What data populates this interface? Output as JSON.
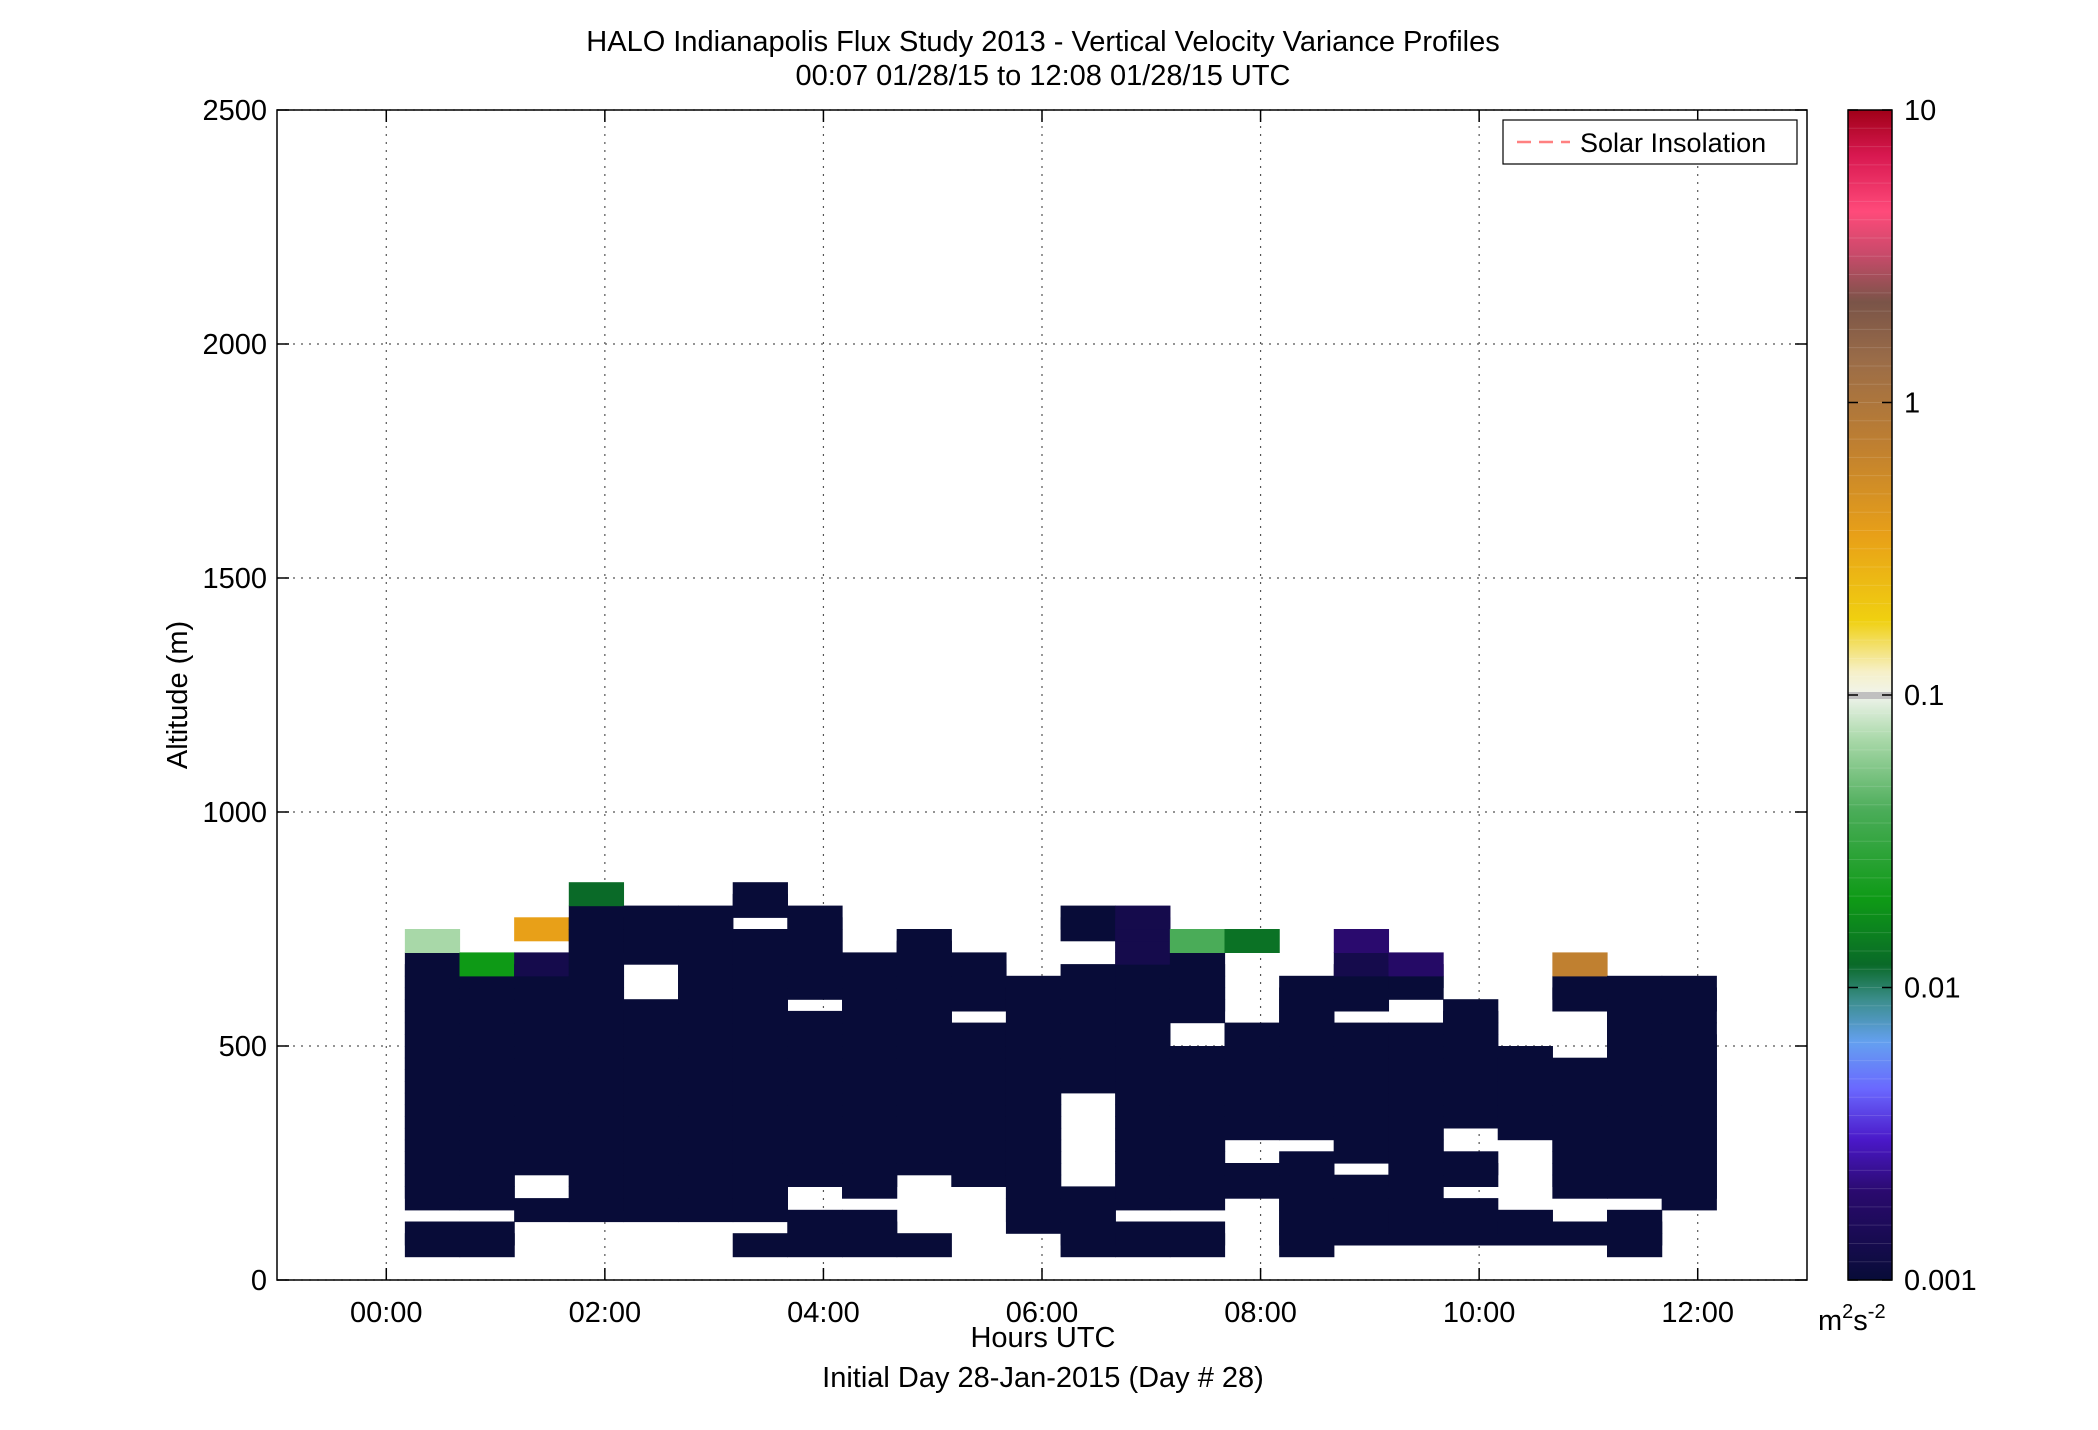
{
  "chart_data": {
    "type": "heatmap",
    "title": "HALO Indianapolis Flux Study 2013 - Vertical Velocity Variance Profiles",
    "subtitle": "00:07 01/28/15 to 12:08 01/28/15  UTC",
    "xlabel": "Hours UTC",
    "xlabel2": "Initial Day 28-Jan-2015 (Day # 28)",
    "ylabel": "Altitude (m)",
    "xlim": [
      -1,
      13
    ],
    "ylim": [
      0,
      2500
    ],
    "grid": true,
    "x_ticks": [
      {
        "value": 0,
        "label": "00:00"
      },
      {
        "value": 2,
        "label": "02:00"
      },
      {
        "value": 4,
        "label": "04:00"
      },
      {
        "value": 6,
        "label": "06:00"
      },
      {
        "value": 8,
        "label": "08:00"
      },
      {
        "value": 10,
        "label": "10:00"
      },
      {
        "value": 12,
        "label": "12:00"
      }
    ],
    "y_ticks": [
      {
        "value": 0,
        "label": "0"
      },
      {
        "value": 500,
        "label": "500"
      },
      {
        "value": 1000,
        "label": "1000"
      },
      {
        "value": 1500,
        "label": "1500"
      },
      {
        "value": 2000,
        "label": "2000"
      },
      {
        "value": 2500,
        "label": "2500"
      }
    ],
    "legend": {
      "position": "top-right",
      "entries": [
        {
          "label": "Solar Insolation",
          "color": "#ff8080",
          "style": "dashed"
        }
      ]
    },
    "colorbar": {
      "scale": "log",
      "range": [
        0.001,
        10
      ],
      "ticks": [
        {
          "value": 0.001,
          "label": "0.001"
        },
        {
          "value": 0.01,
          "label": "0.01"
        },
        {
          "value": 0.1,
          "label": "0.1"
        },
        {
          "value": 1,
          "label": "1"
        },
        {
          "value": 10,
          "label": "10"
        }
      ],
      "units_base": "m",
      "units_sup1": "2",
      "units_mid": "s",
      "units_sup2": "-2",
      "colors": [
        {
          "value": 0.001,
          "color": "#080c38"
        },
        {
          "value": 0.002,
          "color": "#2a0a6e"
        },
        {
          "value": 0.003,
          "color": "#4a18c8"
        },
        {
          "value": 0.0045,
          "color": "#6a68ff"
        },
        {
          "value": 0.0065,
          "color": "#64a0f0"
        },
        {
          "value": 0.009,
          "color": "#3c8e8e"
        },
        {
          "value": 0.012,
          "color": "#0a6a28"
        },
        {
          "value": 0.02,
          "color": "#0e9a16"
        },
        {
          "value": 0.04,
          "color": "#4aac58"
        },
        {
          "value": 0.07,
          "color": "#a8d8a8"
        },
        {
          "value": 0.1,
          "color": "#f0f4ec"
        },
        {
          "value": 0.12,
          "color": "#f6f0c8"
        },
        {
          "value": 0.18,
          "color": "#f0d010"
        },
        {
          "value": 0.35,
          "color": "#e8a018"
        },
        {
          "value": 0.7,
          "color": "#c08030"
        },
        {
          "value": 1.4,
          "color": "#9a6c48"
        },
        {
          "value": 2.2,
          "color": "#7a5448"
        },
        {
          "value": 3.2,
          "color": "#c84a6a"
        },
        {
          "value": 4.5,
          "color": "#ff4a7a"
        },
        {
          "value": 7,
          "color": "#d81850"
        },
        {
          "value": 10,
          "color": "#a00018"
        }
      ]
    },
    "bin_width_hours": 0.5,
    "bin_height_m": 50,
    "base_variance": 0.001,
    "profiles": [
      {
        "start": 0.17,
        "segments": [
          [
            50,
            100
          ],
          [
            150,
            675
          ]
        ],
        "values": {
          "700": 0.07
        }
      },
      {
        "start": 0.67,
        "segments": [
          [
            50,
            100
          ],
          [
            150,
            625
          ]
        ],
        "values": {
          "650": 0.02
        }
      },
      {
        "start": 1.17,
        "segments": [
          [
            125,
            150
          ],
          [
            225,
            650
          ]
        ],
        "values": {
          "650": 0.0013,
          "725": 0.35
        }
      },
      {
        "start": 1.67,
        "segments": [
          [
            125,
            775
          ]
        ],
        "values": {
          "800": 0.012
        }
      },
      {
        "start": 2.17,
        "segments": [
          [
            125,
            575
          ],
          [
            675,
            775
          ]
        ],
        "values": {}
      },
      {
        "start": 2.67,
        "segments": [
          [
            125,
            775
          ]
        ],
        "values": {}
      },
      {
        "start": 3.17,
        "segments": [
          [
            50,
            75
          ],
          [
            125,
            725
          ],
          [
            775,
            825
          ]
        ],
        "values": {}
      },
      {
        "start": 3.67,
        "segments": [
          [
            50,
            125
          ],
          [
            200,
            350
          ],
          [
            375,
            550
          ],
          [
            600,
            775
          ]
        ],
        "values": {}
      },
      {
        "start": 4.17,
        "segments": [
          [
            50,
            125
          ],
          [
            175,
            675
          ]
        ],
        "values": {}
      },
      {
        "start": 4.67,
        "segments": [
          [
            50,
            75
          ],
          [
            225,
            725
          ]
        ],
        "values": {}
      },
      {
        "start": 5.17,
        "segments": [
          [
            200,
            525
          ],
          [
            575,
            675
          ]
        ],
        "values": {}
      },
      {
        "start": 5.67,
        "segments": [
          [
            100,
            625
          ]
        ],
        "values": {}
      },
      {
        "start": 6.17,
        "segments": [
          [
            50,
            175
          ],
          [
            400,
            650
          ],
          [
            725,
            775
          ]
        ],
        "values": {}
      },
      {
        "start": 6.67,
        "segments": [
          [
            50,
            100
          ],
          [
            150,
            675
          ]
        ],
        "values": {
          "675": 0.0013,
          "700": 0.0013,
          "725": 0.0013,
          "750": 0.0013
        }
      },
      {
        "start": 7.17,
        "segments": [
          [
            50,
            100
          ],
          [
            150,
            200
          ],
          [
            225,
            475
          ],
          [
            550,
            675
          ]
        ],
        "values": {
          "700": 0.04
        }
      },
      {
        "start": 7.67,
        "segments": [
          [
            175,
            225
          ],
          [
            300,
            525
          ]
        ],
        "values": {
          "700": 0.013
        }
      },
      {
        "start": 8.17,
        "segments": [
          [
            50,
            250
          ],
          [
            300,
            625
          ]
        ],
        "values": {}
      },
      {
        "start": 8.67,
        "segments": [
          [
            75,
            200
          ],
          [
            250,
            525
          ],
          [
            575,
            675
          ]
        ],
        "values": {
          "650": 0.0013,
          "700": 0.002
        }
      },
      {
        "start": 9.17,
        "segments": [
          [
            75,
            150
          ],
          [
            175,
            525
          ],
          [
            600,
            650
          ]
        ],
        "values": {
          "650": 0.0018
        }
      },
      {
        "start": 9.67,
        "segments": [
          [
            75,
            150
          ],
          [
            200,
            250
          ],
          [
            325,
            575
          ]
        ],
        "values": {}
      },
      {
        "start": 10.17,
        "segments": [
          [
            75,
            125
          ],
          [
            300,
            475
          ]
        ],
        "values": {}
      },
      {
        "start": 10.67,
        "segments": [
          [
            75,
            100
          ],
          [
            175,
            450
          ],
          [
            575,
            625
          ]
        ],
        "values": {
          "650": 0.7
        }
      },
      {
        "start": 11.17,
        "segments": [
          [
            50,
            125
          ],
          [
            175,
            625
          ]
        ],
        "values": {}
      },
      {
        "start": 11.67,
        "segments": [
          [
            150,
            525
          ],
          [
            550,
            625
          ]
        ],
        "values": {}
      }
    ]
  }
}
